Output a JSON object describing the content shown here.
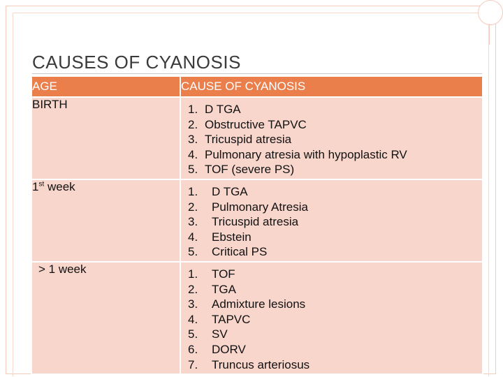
{
  "title": "Causes of Cyanosis",
  "headers": {
    "age": "AGE",
    "cause": "CAUSE OF CYANOSIS"
  },
  "rows": [
    {
      "age": "BIRTH",
      "causes": [
        "D TGA",
        "Obstructive TAPVC",
        "Tricuspid atresia",
        "Pulmonary atresia with hypoplastic RV",
        "TOF (severe PS)"
      ]
    },
    {
      "age_main": "1",
      "age_sup": "st",
      "age_rest": " week",
      "causes": [
        "D  TGA",
        "Pulmonary Atresia",
        "Tricuspid atresia",
        "Ebstein",
        "Critical PS"
      ]
    },
    {
      "age": "> 1 week",
      "causes": [
        "TOF",
        "TGA",
        "Admixture lesions",
        "TAPVC",
        "SV",
        "DORV",
        "Truncus arteriosus"
      ]
    }
  ],
  "numbers": [
    "1.",
    "2.",
    "3.",
    "4.",
    "5.",
    "6.",
    "7."
  ],
  "colors": {
    "header": "#ea7f4c",
    "row": "#f8d6cc",
    "frame": "#f4cbbd"
  }
}
